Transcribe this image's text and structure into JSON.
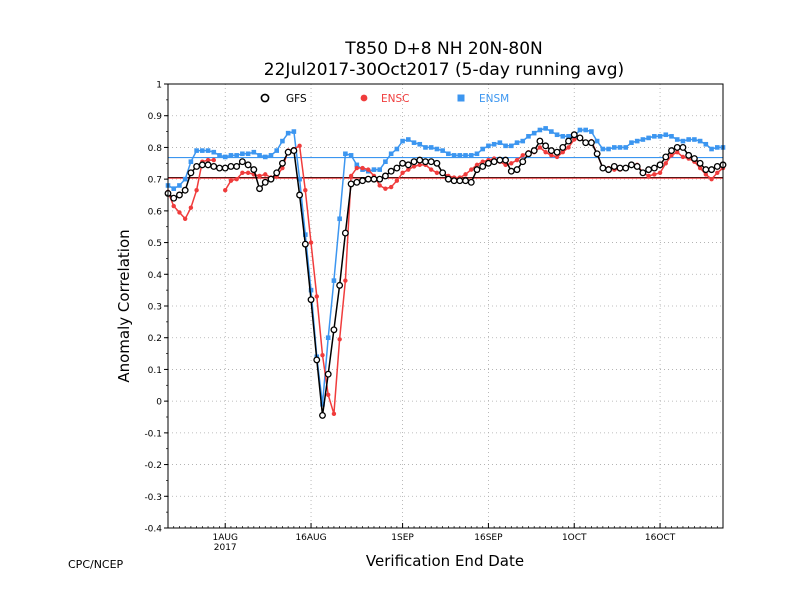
{
  "chart_data": {
    "type": "line",
    "title": "T850 D+8 NH 20N-80N",
    "subtitle": "22Jul2017-30Oct2017 (5-day running avg)",
    "xlabel": "Verification End Date",
    "ylabel": "Anomaly Correlation",
    "credit": "CPC/NCEP",
    "ylim": [
      -0.4,
      1.0
    ],
    "yticks": [
      "-0.4",
      "-0.3",
      "-0.2",
      "-0.1",
      "0",
      "0.1",
      "0.2",
      "0.3",
      "0.4",
      "0.5",
      "0.6",
      "0.7",
      "0.8",
      "0.9",
      "1"
    ],
    "xticks": [
      {
        "day": 10,
        "label": "1AUG",
        "label2": "2017"
      },
      {
        "day": 25,
        "label": "16AUG",
        "label2": ""
      },
      {
        "day": 41,
        "label": "1SEP",
        "label2": ""
      },
      {
        "day": 56,
        "label": "16SEP",
        "label2": ""
      },
      {
        "day": 71,
        "label": "1OCT",
        "label2": ""
      },
      {
        "day": 86,
        "label": "16OCT",
        "label2": ""
      }
    ],
    "grid": true,
    "legend_position": "top-left",
    "colors": {
      "GFS": "#000000",
      "ENSC": "#f03c3c",
      "ENSM": "#3c96f0"
    },
    "reference_lines": [
      {
        "series": "GFS",
        "value": 0.705
      },
      {
        "series": "ENSC",
        "value": 0.703
      },
      {
        "series": "ENSM",
        "value": 0.768
      }
    ],
    "series": [
      {
        "name": "GFS",
        "start_day": 0,
        "values": [
          0.655,
          0.64,
          0.65,
          0.665,
          0.72,
          0.74,
          0.745,
          0.745,
          0.74,
          0.735,
          0.735,
          0.74,
          0.74,
          0.755,
          0.745,
          0.73,
          0.67,
          0.69,
          0.7,
          0.72,
          0.75,
          0.785,
          0.79,
          0.65,
          0.495,
          0.32,
          0.13,
          -0.045,
          0.085,
          0.225,
          0.365,
          0.53,
          0.685,
          0.69,
          0.695,
          0.7,
          0.7,
          0.7,
          0.71,
          0.725,
          0.735,
          0.75,
          0.745,
          0.755,
          0.76,
          0.755,
          0.755,
          0.75,
          0.72,
          0.7,
          0.695,
          0.695,
          0.695,
          0.69,
          0.73,
          0.74,
          0.75,
          0.755,
          0.76,
          0.76,
          0.725,
          0.73,
          0.755,
          0.78,
          0.79,
          0.82,
          0.805,
          0.79,
          0.785,
          0.8,
          0.82,
          0.84,
          0.83,
          0.815,
          0.815,
          0.78,
          0.735,
          0.73,
          0.74,
          0.735,
          0.735,
          0.745,
          0.74,
          0.72,
          0.73,
          0.735,
          0.745,
          0.77,
          0.79,
          0.8,
          0.8,
          0.775,
          0.765,
          0.75,
          0.73,
          0.73,
          0.74,
          0.745
        ]
      },
      {
        "name": "ENSC",
        "start_day": 0,
        "values": [
          0.66,
          0.615,
          0.595,
          0.575,
          0.61,
          0.665,
          0.755,
          0.76,
          0.76,
          null,
          0.665,
          0.695,
          0.7,
          0.72,
          0.72,
          0.715,
          0.71,
          0.715,
          0.705,
          0.71,
          0.735,
          0.79,
          0.795,
          0.805,
          0.665,
          0.5,
          0.33,
          0.145,
          0.02,
          -0.04,
          0.195,
          0.38,
          0.71,
          0.735,
          0.735,
          0.73,
          0.71,
          0.68,
          0.67,
          0.675,
          0.695,
          0.72,
          0.73,
          0.74,
          0.745,
          0.745,
          0.73,
          0.72,
          0.72,
          0.71,
          0.705,
          0.705,
          0.715,
          0.73,
          0.745,
          0.755,
          0.76,
          0.765,
          0.755,
          0.745,
          0.75,
          0.76,
          0.775,
          0.785,
          0.785,
          0.8,
          0.785,
          0.775,
          0.77,
          0.785,
          0.8,
          0.825,
          0.83,
          0.815,
          0.82,
          0.78,
          0.735,
          0.735,
          0.73,
          0.73,
          0.735,
          0.745,
          0.745,
          0.72,
          0.71,
          0.715,
          0.72,
          0.75,
          0.775,
          0.785,
          0.77,
          0.765,
          0.755,
          0.735,
          0.715,
          0.7,
          0.72,
          0.735
        ]
      },
      {
        "name": "ENSM",
        "start_day": 0,
        "values": [
          0.68,
          0.67,
          0.68,
          0.7,
          0.755,
          0.79,
          0.79,
          0.79,
          0.785,
          0.775,
          0.77,
          0.775,
          0.775,
          0.78,
          0.78,
          0.785,
          0.775,
          0.77,
          0.775,
          0.79,
          0.82,
          0.845,
          0.85,
          0.7,
          0.525,
          0.35,
          0.14,
          -0.01,
          0.2,
          0.38,
          0.575,
          0.78,
          0.775,
          0.745,
          0.73,
          0.725,
          0.73,
          0.73,
          0.755,
          0.78,
          0.795,
          0.82,
          0.825,
          0.815,
          0.81,
          0.8,
          0.8,
          0.795,
          0.79,
          0.78,
          0.775,
          0.775,
          0.775,
          0.775,
          0.78,
          0.795,
          0.805,
          0.81,
          0.815,
          0.805,
          0.805,
          0.815,
          0.82,
          0.835,
          0.845,
          0.855,
          0.86,
          0.85,
          0.84,
          0.835,
          0.835,
          0.835,
          0.855,
          0.855,
          0.85,
          0.82,
          0.795,
          0.795,
          0.8,
          0.8,
          0.8,
          0.815,
          0.82,
          0.825,
          0.83,
          0.835,
          0.835,
          0.84,
          0.835,
          0.825,
          0.82,
          0.825,
          0.825,
          0.82,
          0.81,
          0.795,
          0.8,
          0.8
        ]
      }
    ]
  }
}
